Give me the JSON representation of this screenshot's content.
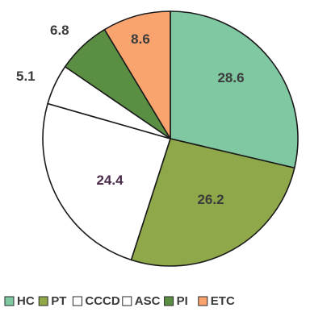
{
  "chart_data": {
    "type": "pie",
    "title": "",
    "slices": [
      {
        "label": "HC",
        "value": 28.6,
        "color": "#7fc8a2",
        "value_text": "28.6",
        "text_color": "#3b3b3b"
      },
      {
        "label": "PT",
        "value": 26.2,
        "color": "#8fa84a",
        "value_text": "26.2",
        "text_color": "#3b3b3b"
      },
      {
        "label": "CCCD",
        "value": 24.4,
        "color": "#ffffff",
        "value_text": "24.4",
        "text_color": "#4a2a4a"
      },
      {
        "label": "ASC",
        "value": 5.1,
        "color": "#ffffff",
        "value_text": "5.1",
        "text_color": "#3b3b3b"
      },
      {
        "label": "PI",
        "value": 6.8,
        "color": "#5a8f43",
        "value_text": "6.8",
        "text_color": "#3b3b3b"
      },
      {
        "label": "ETC",
        "value": 8.6,
        "color": "#f9a46e",
        "value_text": "8.6",
        "text_color": "#3b3b3b"
      }
    ],
    "start_angle_deg": 0,
    "direction": "clockwise",
    "legend_position": "bottom"
  }
}
